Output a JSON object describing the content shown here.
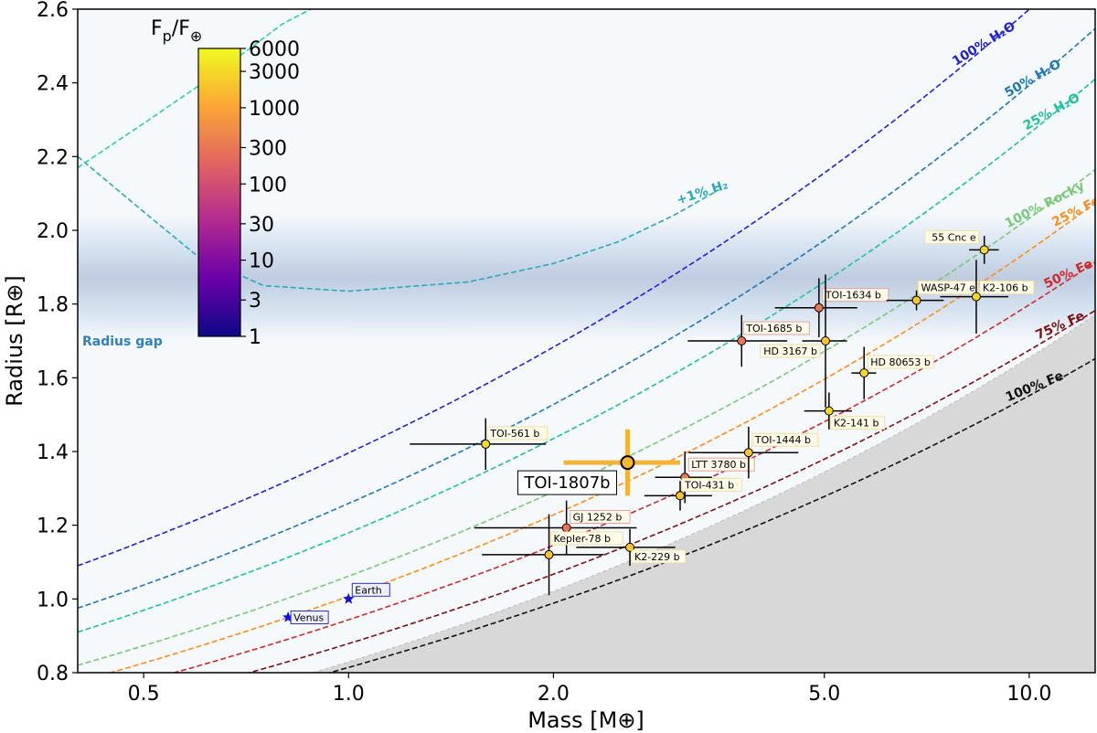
{
  "chart_data": {
    "type": "scatter",
    "xlabel": "Mass [M⊕]",
    "ylabel": "Radius [R⊕]",
    "xscale": "log",
    "xlim": [
      0.4,
      12.5
    ],
    "ylim": [
      0.8,
      2.6
    ],
    "xticks": [
      {
        "value": 0.5,
        "label": "0.5"
      },
      {
        "value": 1.0,
        "label": "1.0"
      },
      {
        "value": 2.0,
        "label": "2.0"
      },
      {
        "value": 5.0,
        "label": "5.0"
      },
      {
        "value": 10.0,
        "label": "10.0"
      }
    ],
    "yticks": [
      {
        "value": 0.8,
        "label": "0.8"
      },
      {
        "value": 1.0,
        "label": "1.0"
      },
      {
        "value": 1.2,
        "label": "1.2"
      },
      {
        "value": 1.4,
        "label": "1.4"
      },
      {
        "value": 1.6,
        "label": "1.6"
      },
      {
        "value": 1.8,
        "label": "1.8"
      },
      {
        "value": 2.0,
        "label": "2.0"
      },
      {
        "value": 2.2,
        "label": "2.2"
      },
      {
        "value": 2.4,
        "label": "2.4"
      },
      {
        "value": 2.6,
        "label": "2.6"
      }
    ],
    "radius_gap": {
      "label": "Radius gap",
      "center": 1.87,
      "half_width": 0.17
    },
    "colorbar": {
      "title": "Fp/F⊕",
      "title_main": "F",
      "title_sub1": "p",
      "title_sep": "/F",
      "title_sub2": "⊕",
      "min": 1,
      "max": 6000,
      "ticks": [
        {
          "value": 1,
          "label": "1"
        },
        {
          "value": 3,
          "label": "3"
        },
        {
          "value": 10,
          "label": "10"
        },
        {
          "value": 30,
          "label": "30"
        },
        {
          "value": 100,
          "label": "100"
        },
        {
          "value": 300,
          "label": "300"
        },
        {
          "value": 1000,
          "label": "1000"
        },
        {
          "value": 3000,
          "label": "3000"
        },
        {
          "value": 6000,
          "label": "6000"
        }
      ]
    },
    "composition_curves": [
      {
        "name": "100% H2O",
        "label": "100% H₂O",
        "color": "#2020d8",
        "anchor": {
          "x": 0.4,
          "y": 1.09
        },
        "slope": 0.27
      },
      {
        "name": "50% H2O",
        "label": "50% H₂O",
        "color": "#1f77b4",
        "anchor": {
          "x": 0.4,
          "y": 0.975
        },
        "slope": 0.279
      },
      {
        "name": "25% H2O",
        "label": "25% H₂O",
        "color": "#1fc0a0",
        "anchor": {
          "x": 0.4,
          "y": 0.91
        },
        "slope": 0.283
      },
      {
        "name": "100% Rocky",
        "label": "100% Rocky",
        "color": "#78c878",
        "anchor": {
          "x": 0.4,
          "y": 0.82
        },
        "slope": 0.282
      },
      {
        "name": "25% Fe",
        "label": "25% Fe",
        "color": "#ff8c1a",
        "anchor": {
          "x": 0.4,
          "y": 0.775
        },
        "slope": 0.286
      },
      {
        "name": "50% Fe",
        "label": "50% Fe",
        "color": "#cc2a2a",
        "anchor": {
          "x": 0.4,
          "y": 0.73
        },
        "slope": 0.28
      },
      {
        "name": "75% Fe",
        "label": "75% Fe",
        "color": "#7a1010",
        "anchor": {
          "x": 0.4,
          "y": 0.68
        },
        "slope": 0.28
      },
      {
        "name": "100% Fe",
        "label": "100% Fe",
        "color": "#111111",
        "anchor": {
          "x": 0.4,
          "y": 0.63
        },
        "slope": 0.28
      }
    ],
    "h2_curves": [
      {
        "name": "+1% H2",
        "label": "+1% H₂",
        "color": "#2aa8b8",
        "points": [
          [
            0.4,
            2.2
          ],
          [
            0.5,
            2.05
          ],
          [
            0.6,
            1.93
          ],
          [
            0.75,
            1.85
          ],
          [
            1.0,
            1.835
          ],
          [
            1.5,
            1.86
          ],
          [
            2.0,
            1.91
          ],
          [
            2.5,
            1.97
          ],
          [
            3.0,
            2.04
          ],
          [
            3.5,
            2.11
          ]
        ]
      },
      {
        "name": "+1% H2 upper branch",
        "label": "",
        "color": "#2ad0a8",
        "points": [
          [
            0.4,
            2.17
          ],
          [
            0.5,
            2.29
          ],
          [
            0.6,
            2.39
          ],
          [
            0.7,
            2.48
          ],
          [
            0.8,
            2.56
          ],
          [
            0.88,
            2.6
          ]
        ]
      }
    ],
    "planets": [
      {
        "name": "TOI-561 b",
        "mass": 1.59,
        "mass_err": 0.36,
        "radius": 1.42,
        "radius_err": 0.07,
        "flux": 3000
      },
      {
        "name": "GJ 1252 b",
        "mass": 2.09,
        "mass_err": 0.56,
        "radius": 1.193,
        "radius_err": 0.074,
        "flux": 300
      },
      {
        "name": "Kepler-78 b",
        "mass": 1.97,
        "mass_err": 0.4,
        "radius": 1.12,
        "radius_err": 0.11,
        "flux": 2000
      },
      {
        "name": "K2-229 b",
        "mass": 2.59,
        "mass_err": 0.43,
        "radius": 1.14,
        "radius_err": 0.05,
        "flux": 2000
      },
      {
        "name": "LTT 3780 b",
        "mass": 3.12,
        "mass_err": 0.3,
        "radius": 1.33,
        "radius_err": 0.07,
        "flux": 300
      },
      {
        "name": "TOI-431 b",
        "mass": 3.07,
        "mass_err": 0.35,
        "radius": 1.28,
        "radius_err": 0.04,
        "flux": 2000
      },
      {
        "name": "TOI-1444 b",
        "mass": 3.87,
        "mass_err": 0.71,
        "radius": 1.397,
        "radius_err": 0.07,
        "flux": 2000
      },
      {
        "name": "TOI-1685 b",
        "mass": 3.78,
        "mass_err": 0.63,
        "radius": 1.7,
        "radius_err": 0.07,
        "flux": 300
      },
      {
        "name": "TOI-1634 b",
        "mass": 4.91,
        "mass_err": 0.68,
        "radius": 1.79,
        "radius_err": 0.08,
        "flux": 300
      },
      {
        "name": "HD 3167 b",
        "mass": 5.02,
        "mass_err": 0.38,
        "radius": 1.7,
        "radius_err": 0.18,
        "flux": 2000
      },
      {
        "name": "HD 80653 b",
        "mass": 5.72,
        "mass_err": 0.24,
        "radius": 1.613,
        "radius_err": 0.071,
        "flux": 3000
      },
      {
        "name": "K2-141 b",
        "mass": 5.08,
        "mass_err": 0.41,
        "radius": 1.51,
        "radius_err": 0.05,
        "flux": 3000
      },
      {
        "name": "WASP-47 e",
        "mass": 6.83,
        "mass_err": 0.66,
        "radius": 1.81,
        "radius_err": 0.027,
        "flux": 2000
      },
      {
        "name": "K2-106 b",
        "mass": 8.36,
        "mass_err": 0.96,
        "radius": 1.82,
        "radius_err": 0.1,
        "flux": 3000
      },
      {
        "name": "55 Cnc e",
        "mass": 8.59,
        "mass_err": 0.43,
        "radius": 1.947,
        "radius_err": 0.038,
        "flux": 3000
      },
      {
        "name": "TOI-1807b",
        "mass": 2.57,
        "mass_err": 0.5,
        "radius": 1.37,
        "radius_err": 0.09,
        "flux": 1500,
        "highlight": true
      }
    ],
    "solar_system": [
      {
        "name": "Earth",
        "mass": 1.0,
        "radius": 1.0
      },
      {
        "name": "Venus",
        "mass": 0.815,
        "radius": 0.95
      }
    ]
  }
}
